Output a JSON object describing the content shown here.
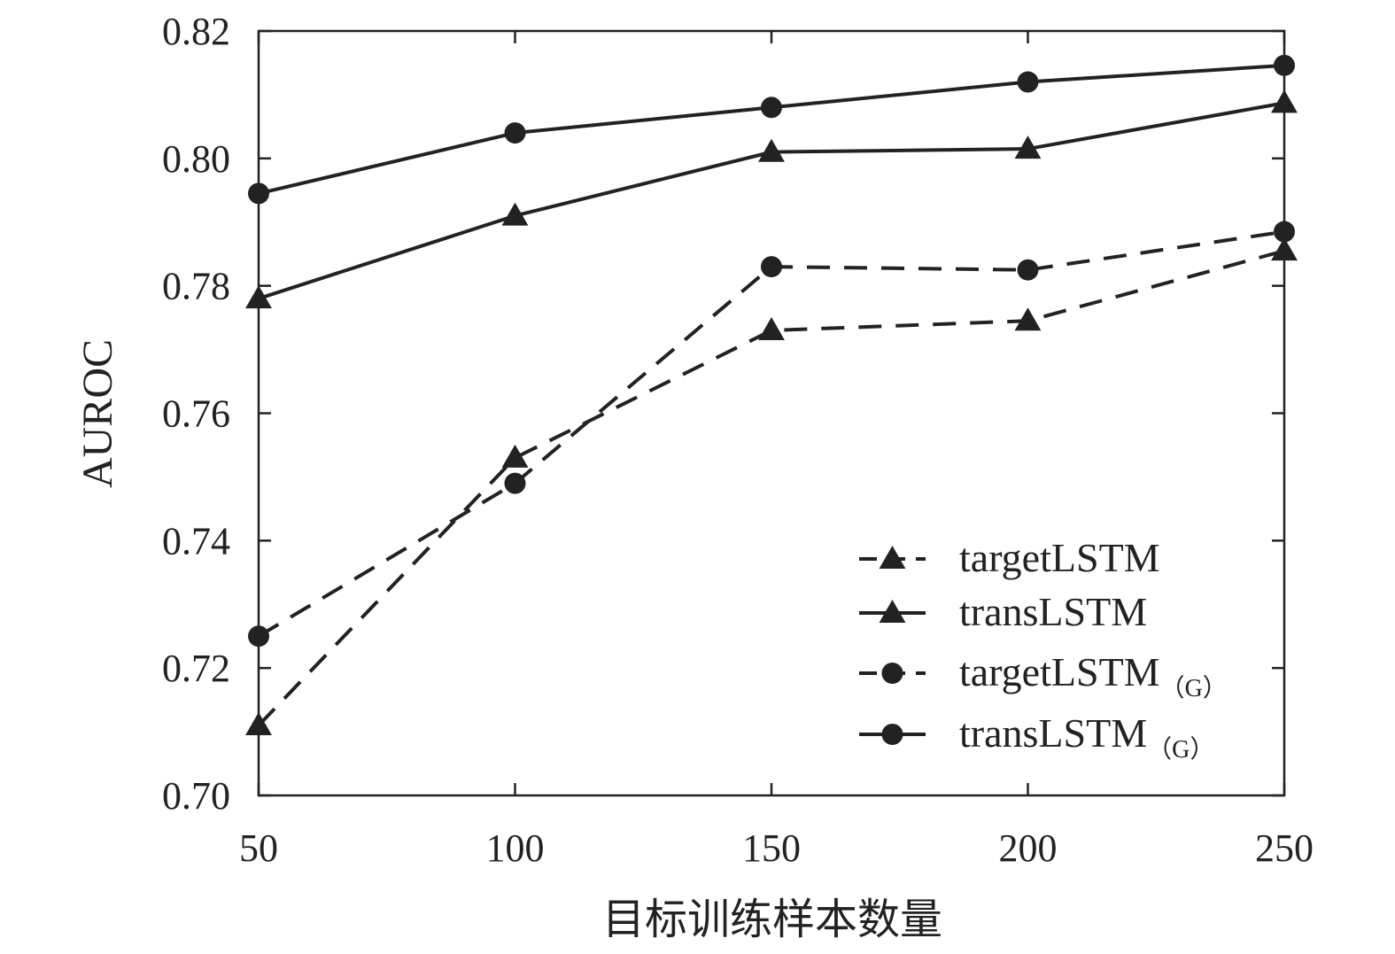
{
  "chart_data": {
    "type": "line",
    "title": "",
    "xlabel": "目标训练样本数量",
    "ylabel": "AUROC",
    "x": [
      50,
      100,
      150,
      200,
      250
    ],
    "xticks": [
      "50",
      "100",
      "150",
      "200",
      "250"
    ],
    "yticks": [
      "0.70",
      "0.72",
      "0.74",
      "0.76",
      "0.78",
      "0.80",
      "0.82"
    ],
    "xlim": [
      50,
      250
    ],
    "ylim": [
      0.7,
      0.82
    ],
    "grid": false,
    "legend_position": "bottom-right",
    "series": [
      {
        "name": "targetLSTM",
        "name_sub": "",
        "line_style": "dashed",
        "marker": "triangle",
        "color": "#222222",
        "values": [
          0.711,
          0.753,
          0.773,
          0.7745,
          0.7855
        ]
      },
      {
        "name": "transLSTM",
        "name_sub": "",
        "line_style": "solid",
        "marker": "triangle",
        "color": "#222222",
        "values": [
          0.778,
          0.791,
          0.801,
          0.8015,
          0.8087
        ]
      },
      {
        "name": "targetLSTM",
        "name_sub": "（G）",
        "line_style": "dashed",
        "marker": "circle",
        "color": "#222222",
        "values": [
          0.725,
          0.749,
          0.783,
          0.7825,
          0.7885
        ]
      },
      {
        "name": "transLSTM",
        "name_sub": "（G）",
        "line_style": "solid",
        "marker": "circle",
        "color": "#222222",
        "values": [
          0.7945,
          0.804,
          0.808,
          0.812,
          0.8146
        ]
      }
    ]
  }
}
